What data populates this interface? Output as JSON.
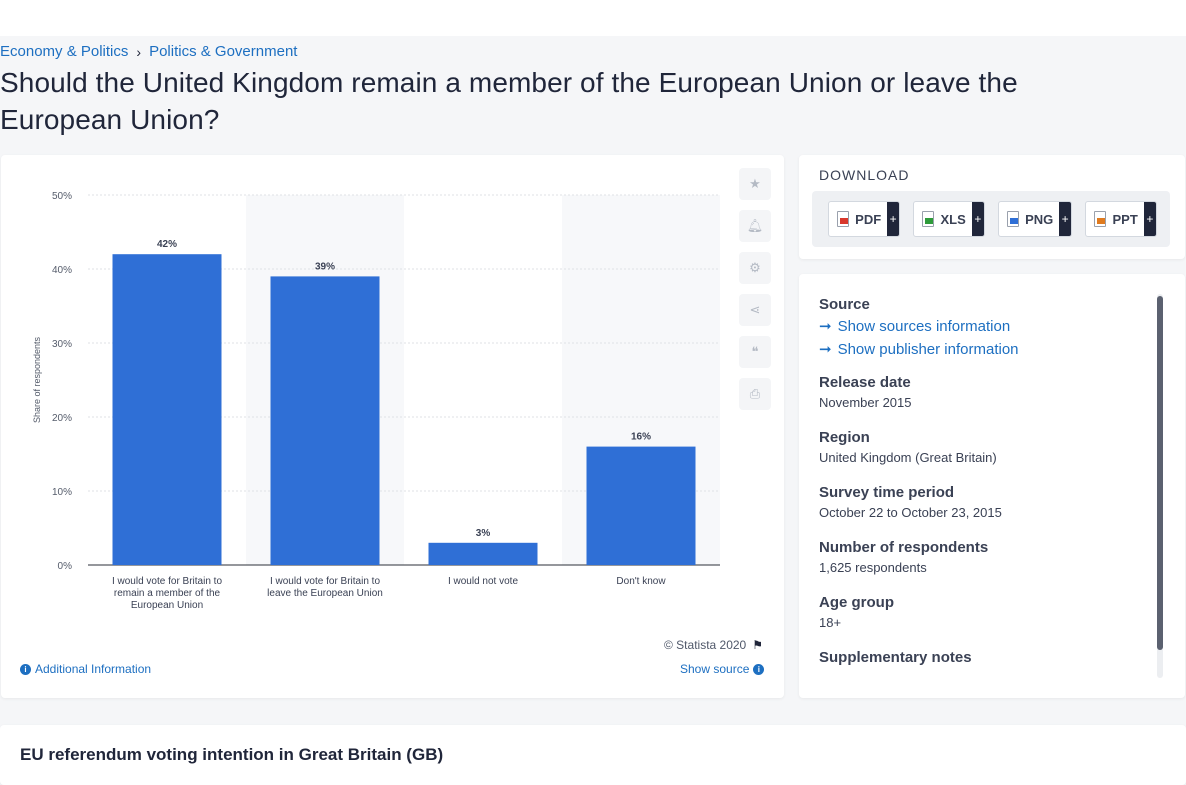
{
  "breadcrumb": [
    "Economy & Politics",
    "Politics & Government"
  ],
  "page_title": "Should the United Kingdom remain a member of the European Union or leave the European Union?",
  "chart_data": {
    "type": "bar",
    "categories": [
      [
        "I would vote for Britain to",
        "remain a member of the",
        "European Union"
      ],
      [
        "I would vote for Britain to",
        "leave the European Union"
      ],
      [
        "I would not vote"
      ],
      [
        "Don't know"
      ]
    ],
    "values": [
      42,
      39,
      3,
      16
    ],
    "value_labels": [
      "42%",
      "39%",
      "3%",
      "16%"
    ],
    "ylabel": "Share of respondents",
    "yticks": [
      "0%",
      "10%",
      "20%",
      "30%",
      "40%",
      "50%"
    ],
    "ylim": [
      0,
      50
    ],
    "grid": true,
    "bar_color": "#2f6fd6"
  },
  "chart_footer": {
    "copyright": "© Statista 2020",
    "additional_info": "Additional Information",
    "show_source": "Show source"
  },
  "toolbar_icons": [
    "star-icon",
    "bell-icon",
    "gear-icon",
    "share-icon",
    "quote-icon",
    "print-icon"
  ],
  "download": {
    "title": "DOWNLOAD",
    "buttons": [
      {
        "label": "PDF",
        "plus": "+",
        "color": "#d9382c"
      },
      {
        "label": "XLS",
        "plus": "+",
        "color": "#2e9b3a"
      },
      {
        "label": "PNG",
        "plus": "+",
        "color": "#2f6fd6"
      },
      {
        "label": "PPT",
        "plus": "+",
        "color": "#e07b1f"
      }
    ]
  },
  "info": {
    "source_label": "Source",
    "show_sources": "Show sources information",
    "show_publisher": "Show publisher information",
    "release_date_label": "Release date",
    "release_date": "November 2015",
    "region_label": "Region",
    "region": "United Kingdom (Great Britain)",
    "survey_label": "Survey time period",
    "survey": "October 22 to October 23, 2015",
    "respondents_label": "Number of respondents",
    "respondents": "1,625 respondents",
    "age_label": "Age group",
    "age": "18+",
    "notes_label": "Supplementary notes"
  },
  "bottom_title": "EU referendum voting intention in Great Britain (GB)"
}
